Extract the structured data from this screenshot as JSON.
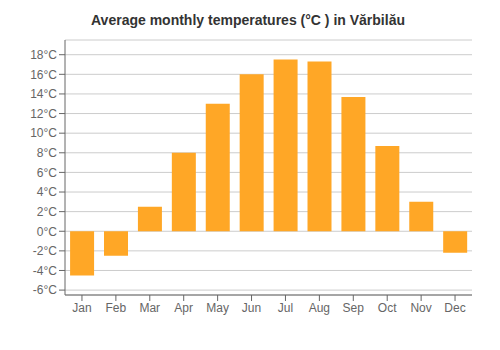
{
  "chart_data": {
    "type": "bar",
    "title": "Average monthly temperatures (°C ) in Vărbilău",
    "categories": [
      "Jan",
      "Feb",
      "Mar",
      "Apr",
      "May",
      "Jun",
      "Jul",
      "Aug",
      "Sep",
      "Oct",
      "Nov",
      "Dec"
    ],
    "values": [
      -4.5,
      -2.5,
      2.5,
      8.0,
      13.0,
      16.0,
      17.5,
      17.3,
      13.7,
      8.7,
      3.0,
      -2.2
    ],
    "color": "#FFA726",
    "ylim": [
      -6.5,
      19.5
    ],
    "yticks": [
      {
        "value": -6,
        "label": "-6°C"
      },
      {
        "value": -4,
        "label": "-4°C"
      },
      {
        "value": -2,
        "label": "-2°C"
      },
      {
        "value": 0,
        "label": "0°C"
      },
      {
        "value": 2,
        "label": "2°C"
      },
      {
        "value": 4,
        "label": "4°C"
      },
      {
        "value": 6,
        "label": "6°C"
      },
      {
        "value": 8,
        "label": "8°C"
      },
      {
        "value": 10,
        "label": "10°C"
      },
      {
        "value": 12,
        "label": "12°C"
      },
      {
        "value": 14,
        "label": "14°C"
      },
      {
        "value": 16,
        "label": "16°C"
      },
      {
        "value": 18,
        "label": "18°C"
      }
    ],
    "grid": true
  }
}
